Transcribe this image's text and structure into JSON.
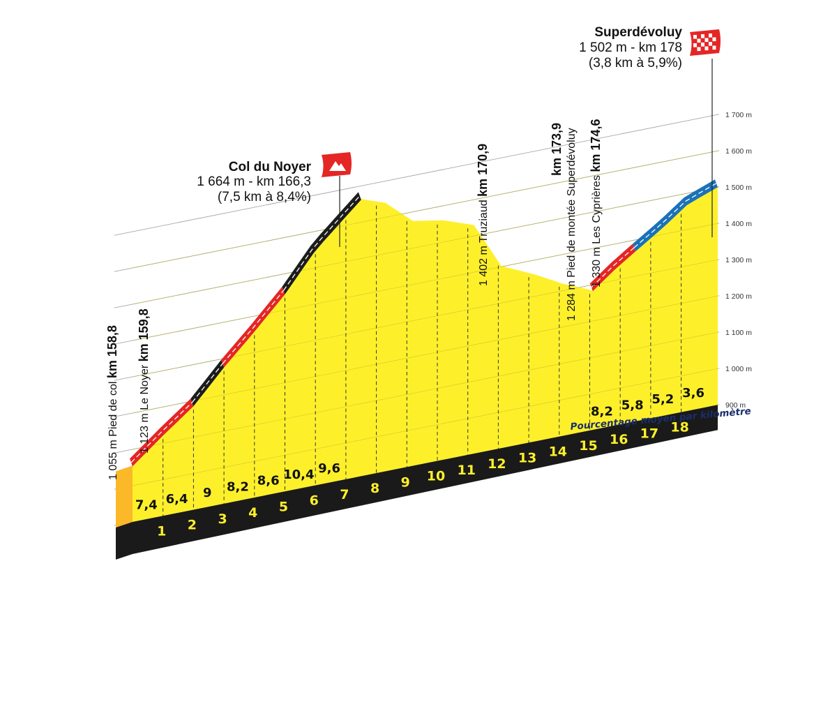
{
  "chart_data": {
    "type": "area",
    "title": "",
    "xlabel": "",
    "ylabel": "",
    "ylim": [
      900,
      1700
    ],
    "y_ticks": [
      "1 700 m",
      "1 600 m",
      "1 500 m",
      "1 400 m",
      "1 300 m",
      "1 200 m",
      "1 100 m",
      "1 000 m",
      "900 m"
    ],
    "km_markers": [
      "1",
      "2",
      "3",
      "4",
      "5",
      "6",
      "7",
      "8",
      "9",
      "10",
      "11",
      "12",
      "13",
      "14",
      "15",
      "16",
      "17",
      "18"
    ],
    "segment_gradients_climb1": [
      "7,4",
      "6,4",
      "9",
      "8,2",
      "8,6",
      "10,4",
      "9,6"
    ],
    "segment_gradients_climb2": [
      "8,2",
      "5,8",
      "5,2",
      "3,6"
    ],
    "gradient_caption": "Pourcentage moyen par kilomètre",
    "profile": [
      {
        "km": 0,
        "alt": 1055
      },
      {
        "km": 1,
        "alt": 1123
      },
      {
        "km": 2,
        "alt": 1187
      },
      {
        "km": 3,
        "alt": 1277
      },
      {
        "km": 4,
        "alt": 1359
      },
      {
        "km": 5,
        "alt": 1445
      },
      {
        "km": 6,
        "alt": 1549
      },
      {
        "km": 7.5,
        "alt": 1664
      },
      {
        "km": 8.3,
        "alt": 1640
      },
      {
        "km": 9.2,
        "alt": 1575
      },
      {
        "km": 10.2,
        "alt": 1560
      },
      {
        "km": 11.2,
        "alt": 1530
      },
      {
        "km": 12.1,
        "alt": 1402
      },
      {
        "km": 13.2,
        "alt": 1360
      },
      {
        "km": 14.1,
        "alt": 1320
      },
      {
        "km": 15.1,
        "alt": 1284
      },
      {
        "km": 15.8,
        "alt": 1330
      },
      {
        "km": 16.5,
        "alt": 1370
      },
      {
        "km": 17.4,
        "alt": 1420
      },
      {
        "km": 18.2,
        "alt": 1470
      },
      {
        "km": 19.2,
        "alt": 1502
      }
    ],
    "climb_colors": [
      "#e42625",
      "#1c1c1c",
      "#e42625",
      "#1c1c1c",
      "#e42625",
      "#1a72b8"
    ]
  },
  "summits": [
    {
      "name": "Col du Noyer",
      "detail": "1 664 m - km 166,3",
      "climb": "(7,5 km à 8,4%)"
    },
    {
      "name": "Superdévoluy",
      "detail": "1 502 m - km 178",
      "climb": "(3,8 km à 5,9%)"
    }
  ],
  "waypoints": [
    {
      "alt_text": "1 055 m Pied de col ",
      "km_text": "km 158,8"
    },
    {
      "alt_text": "1 123 m Le Noyer ",
      "km_text": "km 159,8"
    },
    {
      "alt_text": "1 402 m Truziaud ",
      "km_text": "km 170,9"
    },
    {
      "line1": "km 173,9",
      "line2": "1 284 m Pied de montée Superdévoluy"
    },
    {
      "alt_text": "1 330 m Les Cyprières ",
      "km_text": "km 174,6"
    }
  ],
  "colors": {
    "profile_fill": "#fdf02b",
    "front_fill": "#fbb829",
    "base": "#1a1a1a",
    "km_text": "#fdf02b",
    "flag_red": "#e42625"
  },
  "icons": [
    "mountain-flag-icon",
    "finish-flag-icon"
  ]
}
